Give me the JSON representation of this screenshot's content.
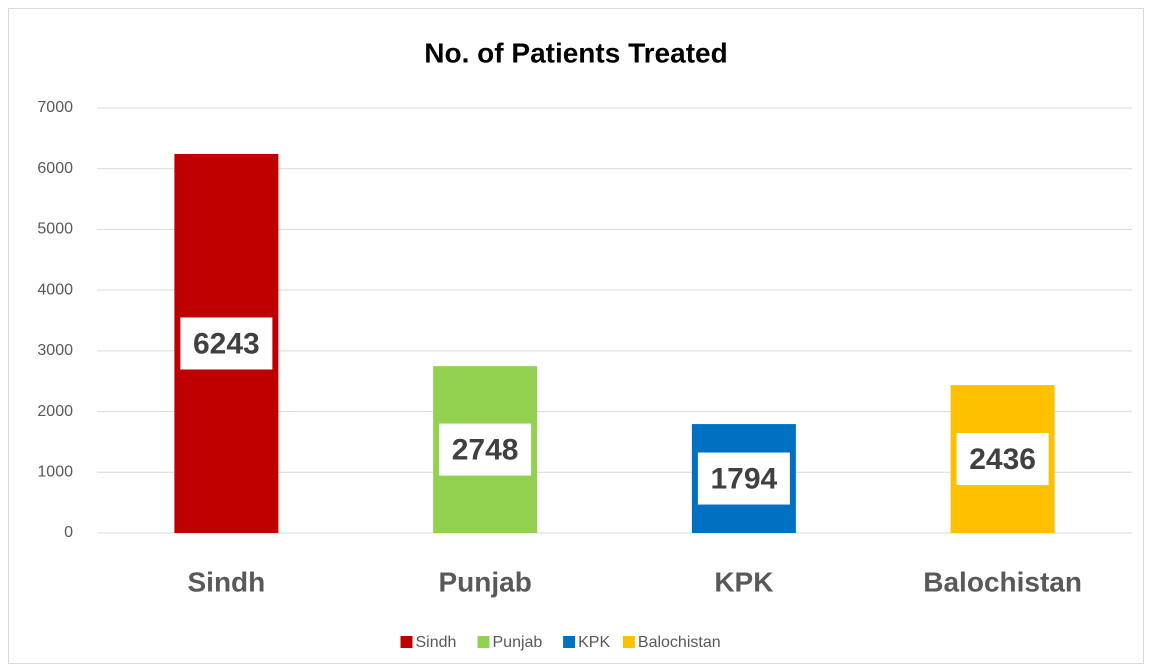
{
  "chart_data": {
    "type": "bar",
    "title": "No. of Patients Treated",
    "categories": [
      "Sindh",
      "Punjab",
      "KPK",
      "Balochistan"
    ],
    "values": [
      6243,
      2748,
      1794,
      2436
    ],
    "colors": [
      "#c00000",
      "#92d050",
      "#0070c0",
      "#ffc000"
    ],
    "ylim": [
      0,
      7000
    ],
    "yticks": [
      0,
      1000,
      2000,
      3000,
      4000,
      5000,
      6000,
      7000
    ],
    "grid": true,
    "legend": "bottom"
  }
}
